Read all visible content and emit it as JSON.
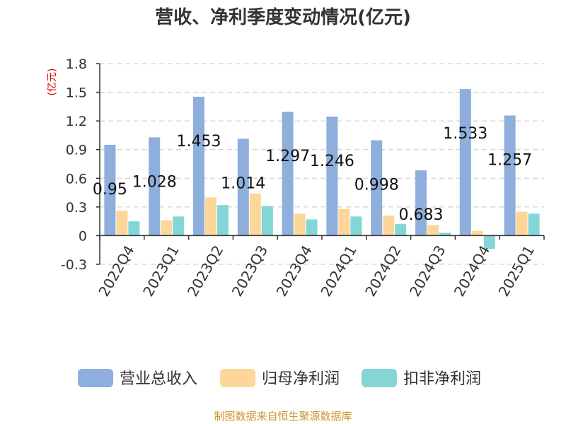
{
  "chart_data": {
    "type": "bar",
    "title": "营收、净利季度变动情况(亿元)",
    "unit_label": "(亿元)",
    "categories": [
      "2022Q4",
      "2023Q1",
      "2023Q2",
      "2023Q3",
      "2023Q4",
      "2024Q1",
      "2024Q2",
      "2024Q3",
      "2024Q4",
      "2025Q1"
    ],
    "series": [
      {
        "name": "营业总收入",
        "color": "#8eaedc",
        "values": [
          0.95,
          1.028,
          1.453,
          1.014,
          1.297,
          1.246,
          0.998,
          0.683,
          1.533,
          1.257
        ]
      },
      {
        "name": "归母净利润",
        "color": "#fdd699",
        "values": [
          0.26,
          0.16,
          0.4,
          0.44,
          0.23,
          0.28,
          0.21,
          0.11,
          0.05,
          0.25
        ]
      },
      {
        "name": "扣非净利润",
        "color": "#84d6d6",
        "values": [
          0.15,
          0.2,
          0.32,
          0.31,
          0.17,
          0.2,
          0.12,
          0.03,
          -0.14,
          0.23
        ]
      }
    ],
    "data_labels": [
      "0.95",
      "1.028",
      "1.453",
      "1.014",
      "1.297",
      "1.246",
      "0.998",
      "0.683",
      "1.533",
      "1.257"
    ],
    "y_ticks": [
      "-0.3",
      "0",
      "0.3",
      "0.6",
      "0.9",
      "1.2",
      "1.5",
      "1.8"
    ],
    "ylim": [
      -0.3,
      1.8
    ],
    "grid": true,
    "legend_position": "bottom",
    "source": "制图数据来自恒生聚源数据库"
  }
}
